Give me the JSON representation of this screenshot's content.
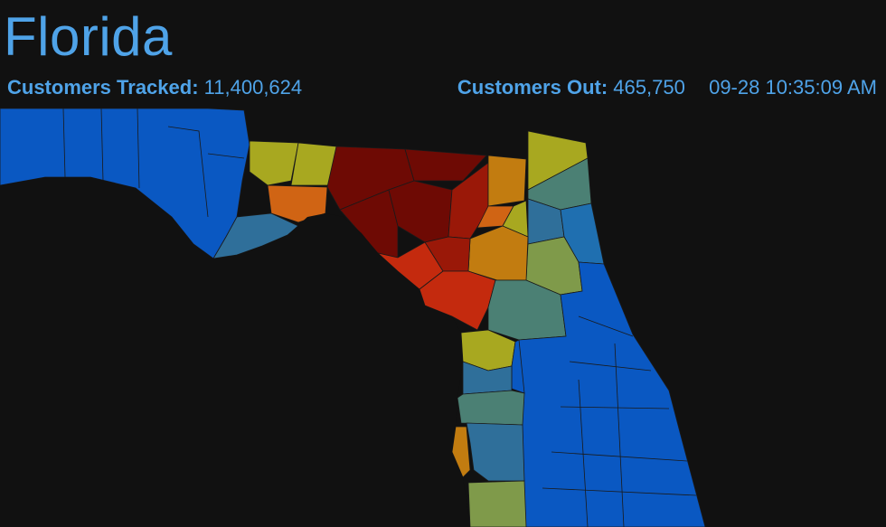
{
  "title": "Florida",
  "stats": {
    "tracked_label": "Customers Tracked:",
    "tracked_value": "11,400,624",
    "out_label": "Customers Out:",
    "out_value": "465,750",
    "timestamp": "09-28 10:35:09 AM"
  },
  "colors": {
    "background": "#111111",
    "text_accent": "#4fa3e8",
    "scale": [
      "#0a58c2",
      "#1f6fb0",
      "#2f6f9a",
      "#4b8074",
      "#7f9a4a",
      "#a8a820",
      "#c27c10",
      "#d06414",
      "#c42a0e",
      "#9a1808",
      "#6e0a04"
    ]
  },
  "map_regions": [
    {
      "name": "panhandle-west",
      "level": 0
    },
    {
      "name": "wakulla",
      "level": 2
    },
    {
      "name": "gadsden",
      "level": 5
    },
    {
      "name": "leon",
      "level": 5
    },
    {
      "name": "jefferson",
      "level": 10
    },
    {
      "name": "madison",
      "level": 10
    },
    {
      "name": "hamilton",
      "level": 10
    },
    {
      "name": "columbia",
      "level": 9
    },
    {
      "name": "baker",
      "level": 6
    },
    {
      "name": "union",
      "level": 7
    },
    {
      "name": "bradford",
      "level": 5
    },
    {
      "name": "nassau",
      "level": 5
    },
    {
      "name": "duval",
      "level": 3
    },
    {
      "name": "clay",
      "level": 2
    },
    {
      "name": "st-johns",
      "level": 1
    },
    {
      "name": "putnam",
      "level": 4
    },
    {
      "name": "alachua",
      "level": 6
    },
    {
      "name": "gilchrist",
      "level": 9
    },
    {
      "name": "dixie",
      "level": 8
    },
    {
      "name": "levy",
      "level": 8
    },
    {
      "name": "marion",
      "level": 3
    },
    {
      "name": "citrus",
      "level": 5
    },
    {
      "name": "hernando",
      "level": 2
    },
    {
      "name": "pasco",
      "level": 3
    },
    {
      "name": "pinellas",
      "level": 6
    },
    {
      "name": "hillsborough",
      "level": 2
    },
    {
      "name": "manatee",
      "level": 4
    },
    {
      "name": "central-east",
      "level": 0
    }
  ]
}
